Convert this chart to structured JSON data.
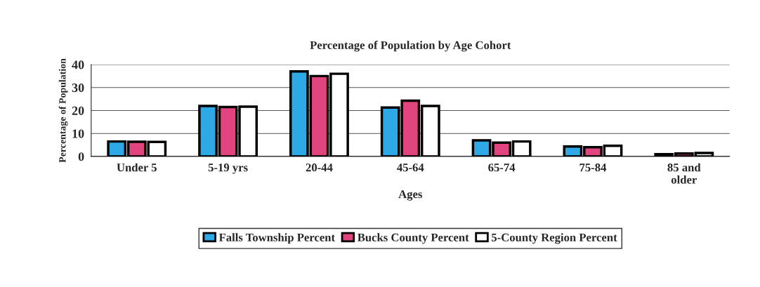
{
  "chart_data": {
    "type": "bar",
    "title": "Percentage of Population by Age Cohort",
    "xlabel": "Ages",
    "ylabel": "Percentage of Population",
    "categories": [
      "Under 5",
      "5-19 yrs",
      "20-44",
      "45-64",
      "65-74",
      "75-84",
      "85 and\nolder"
    ],
    "series": [
      {
        "name": "Falls Township Percent",
        "color": "#2fa8e6",
        "values": [
          6.5,
          22,
          37,
          21.3,
          7,
          4.3,
          1
        ]
      },
      {
        "name": "Bucks County Percent",
        "color": "#e0457f",
        "values": [
          6.4,
          21.5,
          35,
          24.3,
          6,
          4,
          1.3
        ]
      },
      {
        "name": "5-County Region Percent",
        "color": "#ffffff",
        "values": [
          6.3,
          21.7,
          36,
          22,
          6.5,
          4.6,
          1.5
        ]
      }
    ],
    "ylim": [
      0,
      40
    ],
    "yticks": [
      0,
      10,
      20,
      30,
      40
    ],
    "grid": "y",
    "legend": "bottom"
  }
}
